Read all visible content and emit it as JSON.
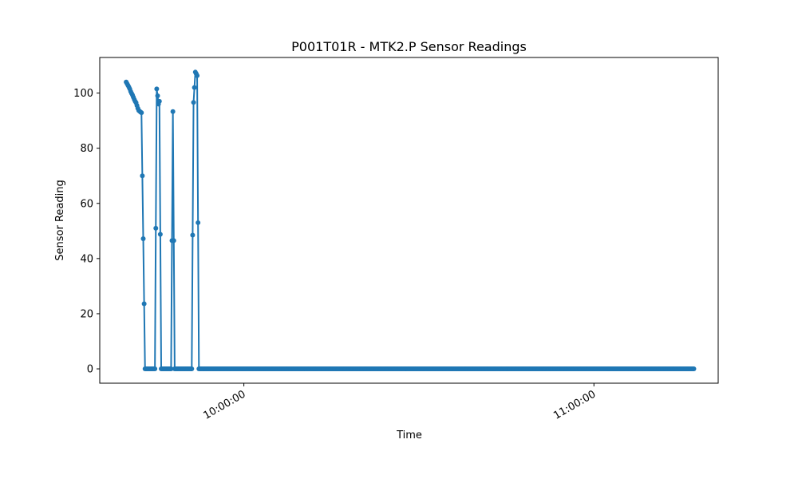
{
  "chart_data": {
    "type": "line",
    "title": "P001T01R - MTK2.P Sensor Readings",
    "xlabel": "Time",
    "ylabel": "Sensor Reading",
    "x_ticks": [
      {
        "label": "10:00:00",
        "minutes": 600
      },
      {
        "label": "11:00:00",
        "minutes": 660
      }
    ],
    "y_ticks": [
      0,
      20,
      40,
      60,
      80,
      100
    ],
    "xlim_minutes": [
      575.3,
      681.3
    ],
    "ylim": [
      -5.2,
      112.9
    ],
    "series": [
      {
        "color": "#1f77b4",
        "marker": "circle",
        "x_start_minutes": 579.83,
        "x_end_minutes": 677.17,
        "y_dense": [
          104.0,
          103.4,
          102.8,
          102.2,
          101.5,
          100.6,
          99.9,
          99.3,
          98.5,
          97.7,
          97.0,
          96.5,
          95.5,
          94.5,
          93.7,
          93.4,
          93.1,
          92.9,
          70.0,
          47.2,
          23.6,
          0,
          0,
          0,
          0,
          0,
          0,
          0,
          0,
          0,
          0,
          0,
          0,
          51.0,
          101.5,
          99.0,
          96.0,
          97.0,
          48.8,
          0,
          0,
          0,
          0,
          0,
          0,
          0,
          0,
          0,
          0,
          0,
          0,
          46.5,
          93.3,
          46.5,
          0,
          0,
          0,
          0,
          0,
          0,
          0,
          0,
          0,
          0,
          0,
          0,
          0,
          0,
          0,
          0,
          0,
          0,
          0,
          0,
          48.5,
          96.6,
          102.0,
          107.6,
          107.0,
          106.3,
          53.0,
          0
        ],
        "tail_constant": 0
      }
    ]
  }
}
